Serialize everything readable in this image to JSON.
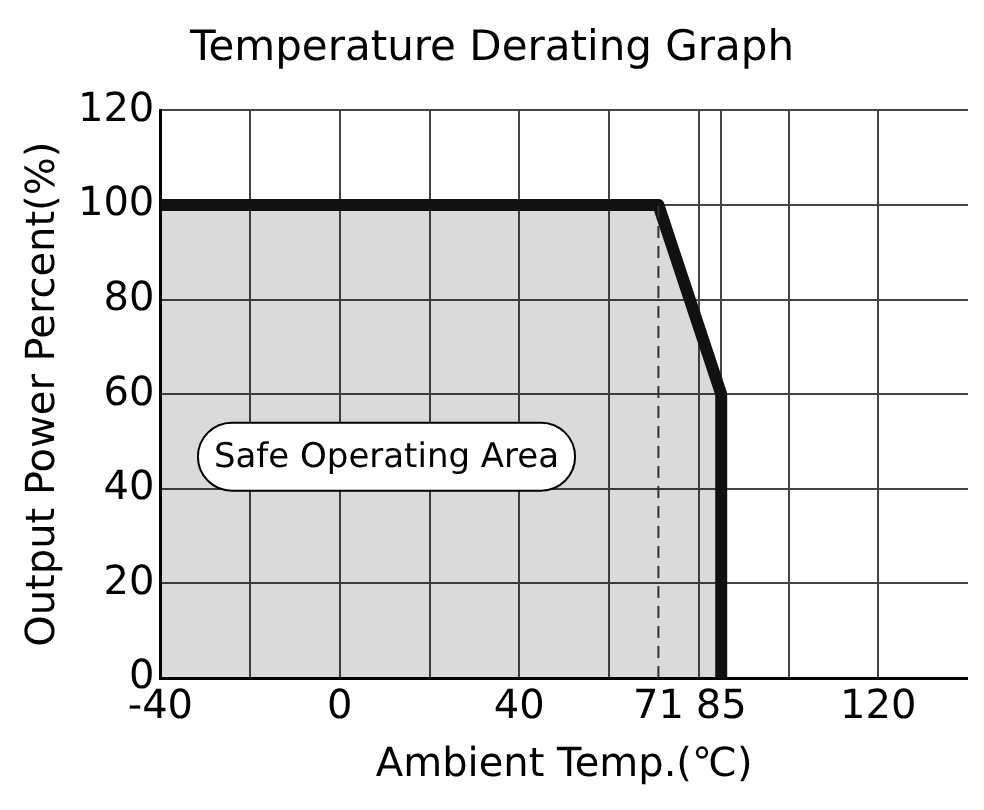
{
  "chart_data": {
    "type": "area",
    "title": "Temperature Derating Graph",
    "xlabel": "Ambient Temp.(℃)",
    "ylabel": "Output Power Percent(%)",
    "x": [
      -40,
      71,
      85,
      85
    ],
    "series": [
      {
        "type": "area",
        "color": "#111111",
        "values": [
          100,
          100,
          60,
          0
        ]
      }
    ],
    "xlim": [
      -40,
      140
    ],
    "xticks": [
      -40,
      {
        "value": -20,
        "label": null
      },
      0,
      {
        "value": 20,
        "label": null
      },
      40,
      {
        "value": 60,
        "label": null
      },
      71,
      {
        "value": 80,
        "label": null
      },
      85,
      {
        "value": 100,
        "label": null
      },
      120
    ],
    "ylim": [
      0,
      120
    ],
    "yticks": [
      0,
      20,
      40,
      60,
      80,
      100,
      120
    ],
    "grid": true,
    "legend": false,
    "ref_lines": [
      {
        "axis": "x",
        "value": 71,
        "color": "#333333",
        "line_style": "dashed"
      }
    ],
    "annotations": [
      "Safe Operating Area"
    ]
  }
}
